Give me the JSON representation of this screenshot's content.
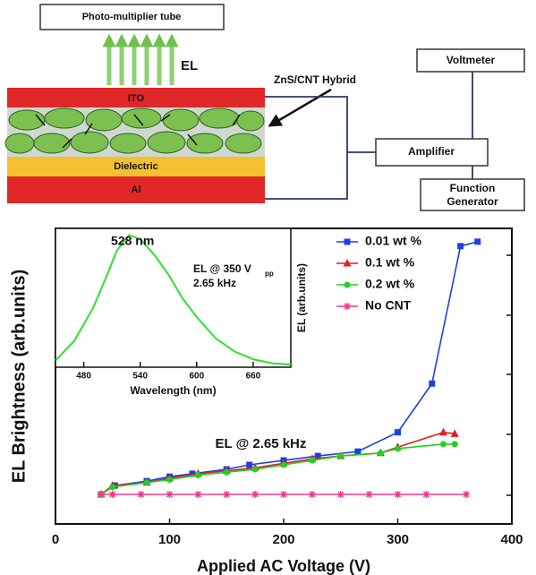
{
  "diagram": {
    "pmt": "Photo-multiplier tube",
    "emission": "EL",
    "ito": "ITO",
    "hybrid": "ZnS/CNT Hybrid",
    "dielectric": "Dielectric",
    "al": "Al",
    "voltmeter": "Voltmeter",
    "amplifier": "Amplifier",
    "generator": [
      "Function",
      "Generator"
    ]
  },
  "chart_data": [
    {
      "type": "line",
      "xlabel": "Applied AC Voltage (V)",
      "ylabel": "EL Brightness (arb.units)",
      "annotation": "EL @ 2.65 kHz",
      "xlim": [
        0,
        400
      ],
      "xticks": [
        0,
        100,
        200,
        300,
        400
      ],
      "ylim": [
        0,
        10
      ],
      "series": [
        {
          "name": "0.01 wt %",
          "color": "#1f3fe0",
          "marker": "square",
          "x": [
            40,
            52,
            80,
            100,
            120,
            150,
            170,
            200,
            230,
            265,
            300,
            330,
            355,
            370
          ],
          "values": [
            1.0,
            1.3,
            1.45,
            1.6,
            1.7,
            1.85,
            2.0,
            2.15,
            2.3,
            2.45,
            3.1,
            4.75,
            9.4,
            9.55
          ]
        },
        {
          "name": "0.1 wt %",
          "color": "#e02020",
          "marker": "triangle",
          "x": [
            40,
            50,
            80,
            100,
            125,
            150,
            175,
            200,
            225,
            250,
            285,
            300,
            340,
            350
          ],
          "values": [
            1.0,
            1.3,
            1.4,
            1.55,
            1.7,
            1.8,
            1.9,
            2.05,
            2.2,
            2.3,
            2.4,
            2.6,
            3.1,
            3.05
          ]
        },
        {
          "name": "0.2 wt %",
          "color": "#20d020",
          "marker": "circle",
          "x": [
            40,
            50,
            80,
            100,
            125,
            150,
            175,
            200,
            225,
            250,
            285,
            300,
            340,
            350
          ],
          "values": [
            1.0,
            1.25,
            1.4,
            1.5,
            1.65,
            1.75,
            1.85,
            2.0,
            2.15,
            2.3,
            2.4,
            2.55,
            2.7,
            2.7
          ]
        },
        {
          "name": "No CNT",
          "color": "#f03c8c",
          "marker": "star",
          "x": [
            40,
            50,
            75,
            100,
            125,
            150,
            175,
            200,
            225,
            250,
            275,
            300,
            325,
            360
          ],
          "values": [
            1.0,
            1.0,
            1.0,
            1.0,
            1.0,
            1.0,
            1.0,
            1.0,
            1.0,
            1.0,
            1.0,
            1.0,
            1.0,
            1.0
          ]
        }
      ]
    },
    {
      "type": "line",
      "xlabel": "Wavelength (nm)",
      "ylabel": "EL (arb.units)",
      "peak_label": "528 nm",
      "condition": [
        "EL @ 350 V",
        "pp",
        "2.65 kHz"
      ],
      "xlim": [
        450,
        700
      ],
      "xticks": [
        480,
        540,
        600,
        660
      ],
      "ylim": [
        0,
        1.05
      ],
      "series": [
        {
          "color": "#30e030",
          "x": [
            450,
            470,
            490,
            505,
            515,
            528,
            540,
            555,
            570,
            585,
            600,
            620,
            640,
            660,
            680,
            700
          ],
          "values": [
            0.05,
            0.2,
            0.45,
            0.7,
            0.88,
            1.0,
            0.97,
            0.85,
            0.7,
            0.52,
            0.38,
            0.22,
            0.12,
            0.06,
            0.03,
            0.02
          ]
        }
      ]
    }
  ]
}
